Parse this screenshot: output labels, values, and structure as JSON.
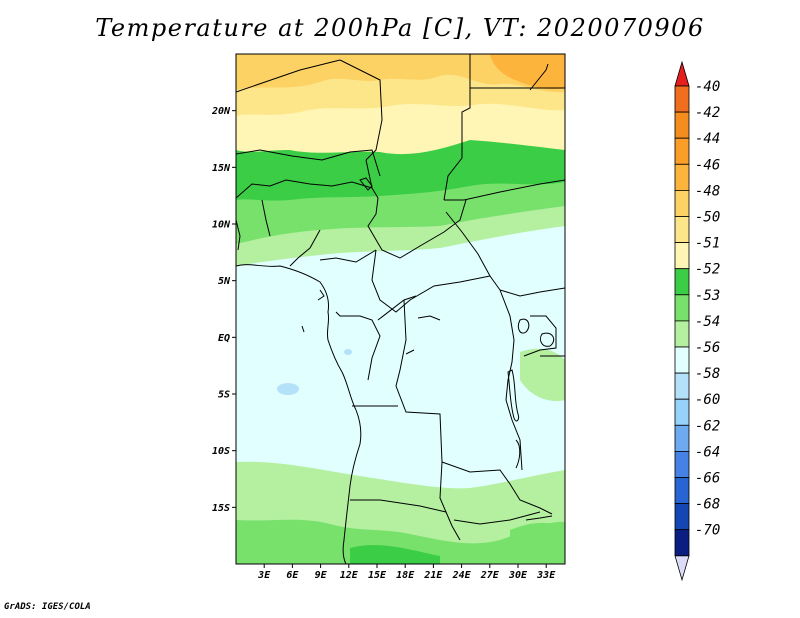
{
  "title": "Temperature at 200hPa [C], VT: 2020070906",
  "credit": "GrADS: IGES/COLA",
  "map": {
    "lon_range": [
      0,
      35
    ],
    "lat_range": [
      -20,
      25
    ],
    "lat_ticks": [
      {
        "value": 20,
        "label": "20N"
      },
      {
        "value": 15,
        "label": "15N"
      },
      {
        "value": 10,
        "label": "10N"
      },
      {
        "value": 5,
        "label": "5N"
      },
      {
        "value": 0,
        "label": "EQ"
      },
      {
        "value": -5,
        "label": "5S"
      },
      {
        "value": -10,
        "label": "10S"
      },
      {
        "value": -15,
        "label": "15S"
      }
    ],
    "lon_ticks": [
      {
        "value": 3,
        "label": "3E"
      },
      {
        "value": 6,
        "label": "6E"
      },
      {
        "value": 9,
        "label": "9E"
      },
      {
        "value": 12,
        "label": "12E"
      },
      {
        "value": 15,
        "label": "15E"
      },
      {
        "value": 18,
        "label": "18E"
      },
      {
        "value": 21,
        "label": "21E"
      },
      {
        "value": 24,
        "label": "24E"
      },
      {
        "value": 27,
        "label": "27E"
      },
      {
        "value": 30,
        "label": "30E"
      },
      {
        "value": 33,
        "label": "33E"
      }
    ]
  },
  "colorbar": {
    "levels": [
      {
        "label": "-40",
        "color": "#f06e1e"
      },
      {
        "label": "-42",
        "color": "#f58c1e"
      },
      {
        "label": "-44",
        "color": "#fa9e28"
      },
      {
        "label": "-46",
        "color": "#fcb43c"
      },
      {
        "label": "-48",
        "color": "#fdd264"
      },
      {
        "label": "-50",
        "color": "#fde68a"
      },
      {
        "label": "-51",
        "color": "#fff5b4"
      },
      {
        "label": "-52",
        "color": "#3ccd46"
      },
      {
        "label": "-53",
        "color": "#78e16c"
      },
      {
        "label": "-54",
        "color": "#b4f0a0"
      },
      {
        "label": "-56",
        "color": "#e1ffff"
      },
      {
        "label": "-58",
        "color": "#b4e1fa"
      },
      {
        "label": "-60",
        "color": "#96d2fa"
      },
      {
        "label": "-62",
        "color": "#6eaaf0"
      },
      {
        "label": "-64",
        "color": "#4682e6"
      },
      {
        "label": "-66",
        "color": "#2864d2"
      },
      {
        "label": "-68",
        "color": "#1446b4"
      },
      {
        "label": "-70",
        "color": "#0a1e82"
      }
    ],
    "top_arrow_color": "#e61e1e",
    "bottom_arrow_color": "#dcdcf8"
  }
}
